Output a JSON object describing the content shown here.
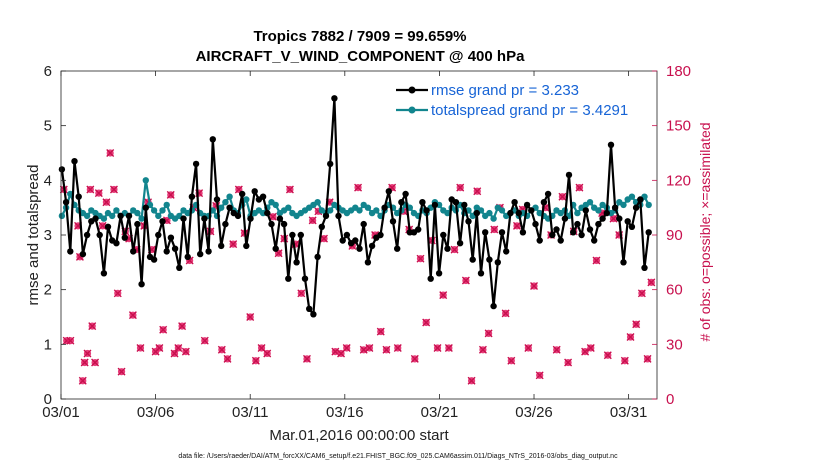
{
  "chart_data": {
    "type": "line",
    "title_line1": "Tropics 7882 / 7909 = 99.659%",
    "title_line2": "AIRCRAFT_V_WIND_COMPONENT @ 400 hPa",
    "xlabel": "Mar.01,2016 00:00:00 start",
    "ylabel_left": "rmse and totalspread",
    "ylabel_right": "# of obs: o=possible; ×=assimilated",
    "xlim": [
      0,
      31.5
    ],
    "ylim_left": [
      0,
      6
    ],
    "ylim_right": [
      0,
      180
    ],
    "x_ticks": [
      0,
      5,
      10,
      15,
      20,
      25,
      30
    ],
    "x_tick_labels": [
      "03/01",
      "03/06",
      "03/11",
      "03/16",
      "03/21",
      "03/26",
      "03/31"
    ],
    "y_left_ticks": [
      "0",
      "1",
      "2",
      "3",
      "4",
      "5",
      "6"
    ],
    "y_right_ticks": [
      "0",
      "30",
      "60",
      "90",
      "120",
      "150",
      "180"
    ],
    "legend_position": "top-right",
    "series": [
      {
        "name": "rmse grand pr = 3.233",
        "color": "#000000",
        "axis": "left",
        "values": [
          4.2,
          3.6,
          2.7,
          4.35,
          3.7,
          2.65,
          3.0,
          3.25,
          3.3,
          3.0,
          2.3,
          3.15,
          2.9,
          2.85,
          3.35,
          2.95,
          3.35,
          2.7,
          3.2,
          2.1,
          3.5,
          2.6,
          2.55,
          3.0,
          3.25,
          2.7,
          2.95,
          2.75,
          2.4,
          3.3,
          2.6,
          3.7,
          4.3,
          2.65,
          3.3,
          2.7,
          4.75,
          3.65,
          2.8,
          3.2,
          3.5,
          3.4,
          3.35,
          3.75,
          2.8,
          3.3,
          3.8,
          3.65,
          3.7,
          3.4,
          3.2,
          2.75,
          3.3,
          3.2,
          2.2,
          3.0,
          2.5,
          3.0,
          2.2,
          1.65,
          1.55,
          2.6,
          3.15,
          3.35,
          4.3,
          5.5,
          3.35,
          2.9,
          3.0,
          2.85,
          2.9,
          2.75,
          3.2,
          2.5,
          2.8,
          2.95,
          3.0,
          3.5,
          3.8,
          3.25,
          2.75,
          3.6,
          3.75,
          3.05,
          3.05,
          3.1,
          3.6,
          3.45,
          2.2,
          3.55,
          2.3,
          3.0,
          2.75,
          3.65,
          3.6,
          2.85,
          3.55,
          3.25,
          2.55,
          3.4,
          2.3,
          3.05,
          2.55,
          1.7,
          2.5,
          3.05,
          2.7,
          3.4,
          3.6,
          3.4,
          3.05,
          3.55,
          3.45,
          3.2,
          2.9,
          3.6,
          3.75,
          3.0,
          3.1,
          2.9,
          3.3,
          4.1,
          3.05,
          3.2,
          3.0,
          3.45,
          3.1,
          2.9,
          3.2,
          3.3,
          3.4,
          4.65,
          3.5,
          3.3,
          2.5,
          3.25,
          3.15,
          3.5,
          3.65,
          2.4,
          3.05
        ],
        "x_start": 0.05,
        "x_step": 0.2215
      },
      {
        "name": "totalspread grand pr = 3.4291",
        "color": "#12858e",
        "axis": "left",
        "values": [
          3.35,
          3.5,
          3.75,
          3.55,
          3.45,
          3.4,
          3.35,
          3.45,
          3.4,
          3.35,
          3.3,
          3.4,
          3.35,
          3.45,
          3.35,
          3.4,
          3.35,
          3.45,
          3.4,
          3.3,
          4.0,
          3.55,
          3.45,
          3.35,
          3.45,
          3.55,
          3.35,
          3.3,
          3.35,
          3.45,
          3.4,
          3.45,
          3.55,
          3.4,
          3.35,
          3.35,
          3.45,
          3.35,
          3.5,
          3.6,
          3.7,
          3.45,
          3.4,
          3.55,
          3.65,
          3.35,
          3.4,
          3.45,
          3.4,
          3.5,
          3.6,
          3.55,
          3.4,
          3.45,
          3.5,
          3.4,
          3.35,
          3.4,
          3.45,
          3.5,
          3.55,
          3.6,
          3.45,
          3.4,
          3.45,
          3.55,
          3.5,
          3.45,
          3.4,
          3.45,
          3.5,
          3.45,
          3.55,
          3.5,
          3.4,
          3.45,
          3.35,
          3.45,
          3.55,
          3.5,
          3.4,
          3.45,
          3.55,
          3.5,
          3.4,
          3.35,
          3.45,
          3.4,
          3.5,
          3.6,
          3.55,
          3.45,
          3.4,
          3.5,
          3.45,
          3.55,
          3.4,
          3.45,
          3.35,
          3.5,
          3.45,
          3.35,
          3.4,
          3.3,
          3.5,
          3.45,
          3.35,
          3.4,
          3.45,
          3.35,
          3.4,
          3.35,
          3.45,
          3.5,
          3.4,
          3.35,
          3.3,
          3.35,
          3.45,
          3.4,
          3.45,
          3.35,
          3.55,
          3.4,
          3.5,
          3.55,
          3.6,
          3.5,
          3.45,
          3.55,
          3.5,
          3.4,
          3.45,
          3.6,
          3.55,
          3.65,
          3.7,
          3.6,
          3.55,
          3.7,
          3.55
        ],
        "x_start": 0.05,
        "x_step": 0.2215
      }
    ],
    "obs_assimilated_x": [
      0.15,
      0.3,
      0.5,
      0.9,
      1.0,
      1.15,
      1.25,
      1.4,
      1.55,
      1.65,
      1.8,
      2.0,
      2.2,
      2.4,
      2.6,
      2.8,
      3.0,
      3.2,
      3.4,
      3.6,
      3.8,
      4.0,
      4.2,
      4.4,
      4.6,
      4.8,
      5.0,
      5.2,
      5.4,
      5.6,
      5.8,
      6.0,
      6.2,
      6.4,
      6.6,
      6.8,
      7.0,
      7.3,
      7.6,
      7.9,
      8.2,
      8.5,
      8.8,
      9.1,
      9.4,
      9.7,
      10.0,
      10.3,
      10.6,
      10.9,
      11.2,
      11.5,
      11.8,
      12.1,
      12.4,
      12.7,
      13.0,
      13.3,
      13.6,
      13.9,
      14.2,
      14.5,
      14.8,
      15.1,
      15.4,
      15.7,
      16.0,
      16.3,
      16.6,
      16.9,
      17.2,
      17.5,
      17.8,
      18.1,
      18.4,
      18.7,
      19.0,
      19.3,
      19.6,
      19.9,
      20.2,
      20.5,
      20.8,
      21.1,
      21.4,
      21.7,
      22.0,
      22.3,
      22.6,
      22.9,
      23.2,
      23.5,
      23.8,
      24.1,
      24.4,
      24.7,
      25.0,
      25.3,
      25.6,
      25.9,
      26.2,
      26.5,
      26.8,
      27.1,
      27.4,
      27.7,
      28.0,
      28.3,
      28.6,
      28.9,
      29.2,
      29.5,
      29.8,
      30.1,
      30.4,
      30.7,
      31.0,
      31.2
    ],
    "obs_assimilated_y": [
      115,
      32,
      32,
      95,
      78,
      10,
      20,
      25,
      115,
      40,
      20,
      113,
      95,
      108,
      135,
      115,
      58,
      15,
      92,
      88,
      46,
      82,
      28,
      95,
      108,
      82,
      26,
      28,
      38,
      98,
      112,
      25,
      28,
      40,
      26,
      76,
      105,
      113,
      32,
      92,
      106,
      27,
      22,
      85,
      115,
      91,
      45,
      21,
      28,
      25,
      100,
      80,
      88,
      115,
      85,
      58,
      22,
      98,
      103,
      88,
      108,
      26,
      25,
      28,
      84,
      116,
      27,
      28,
      90,
      37,
      27,
      116,
      28,
      103,
      93,
      22,
      77,
      42,
      87,
      28,
      57,
      28,
      82,
      116,
      65,
      10,
      114,
      27,
      36,
      93,
      105,
      47,
      21,
      95,
      104,
      28,
      62,
      13,
      105,
      90,
      27,
      111,
      20,
      92,
      116,
      26,
      28,
      76,
      102,
      24,
      99,
      90,
      21,
      34,
      41,
      58,
      22,
      64,
      0
    ]
  },
  "footer": "data file: /Users/raeder/DAI/ATM_forcXX/CAM6_setup/f.e21.FHIST_BGC.f09_025.CAM6assim.011/Diags_NTrS_2016-03/obs_diag_output.nc"
}
